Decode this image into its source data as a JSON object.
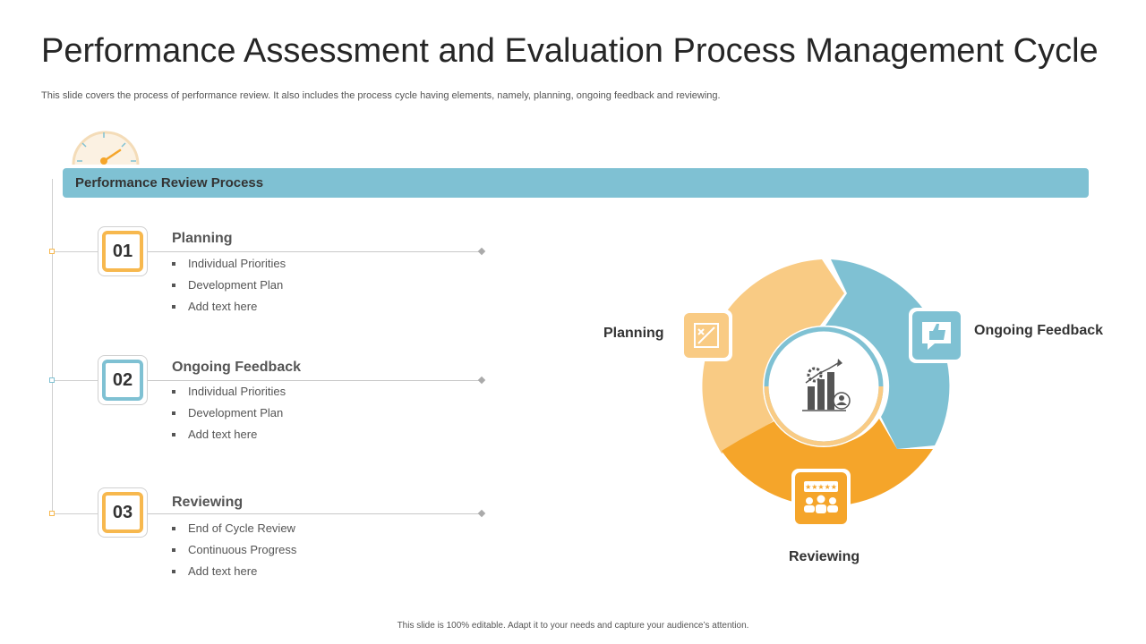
{
  "title": "Performance Assessment and Evaluation Process Management Cycle",
  "subtitle": "This slide covers the process of performance review. It also includes the process cycle having elements, namely, planning, ongoing feedback and reviewing.",
  "banner": {
    "label": "Performance Review Process"
  },
  "steps": [
    {
      "number": "01",
      "title": "Planning",
      "color": "#f7b84e",
      "bullets": [
        "Individual  Priorities",
        "Development  Plan",
        "Add text here"
      ]
    },
    {
      "number": "02",
      "title": "Ongoing Feedback",
      "color": "#7fc1d3",
      "bullets": [
        "Individual  Priorities",
        "Development  Plan",
        "Add text here"
      ]
    },
    {
      "number": "03",
      "title": "Reviewing",
      "color": "#f7b84e",
      "bullets": [
        "End of Cycle Review",
        "Continuous  Progress",
        "Add text here"
      ]
    }
  ],
  "cycle": {
    "labels": {
      "planning": "Planning",
      "feedback": "Ongoing Feedback",
      "reviewing": "Reviewing"
    },
    "colors": {
      "planning": "#f9cb84",
      "feedback": "#7fc1d3",
      "reviewing": "#f5a52a"
    },
    "icons": {
      "planning": "strategy-board-icon",
      "feedback": "thumbs-up-chat-icon",
      "reviewing": "rating-team-icon",
      "center": "growth-chart-icon"
    }
  },
  "footer": "This slide is 100% editable. Adapt it to your needs and capture your audience’s attention."
}
